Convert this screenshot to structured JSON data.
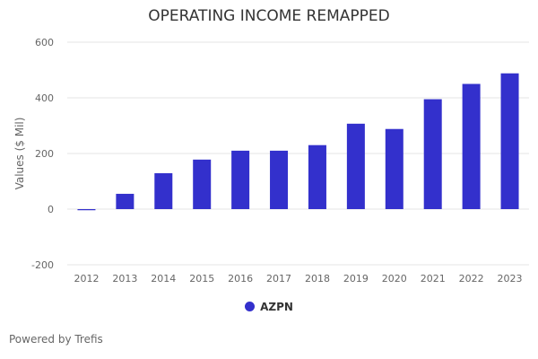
{
  "chart_data": {
    "type": "bar",
    "title": "OPERATING INCOME REMAPPED",
    "xlabel": "",
    "ylabel": "Values ($ Mil)",
    "ylim": [
      -200,
      600
    ],
    "yticks": [
      -200,
      0,
      200,
      400,
      600
    ],
    "grid": true,
    "legend_position": "bottom",
    "categories": [
      "2012",
      "2013",
      "2014",
      "2015",
      "2016",
      "2017",
      "2018",
      "2019",
      "2020",
      "2021",
      "2022",
      "2023"
    ],
    "series": [
      {
        "name": "AZPN",
        "color": "#3330cc",
        "values": [
          -4,
          55,
          129,
          178,
          210,
          210,
          230,
          307,
          288,
          395,
          450,
          488
        ]
      }
    ]
  },
  "footer": {
    "credit": "Powered by Trefis"
  }
}
